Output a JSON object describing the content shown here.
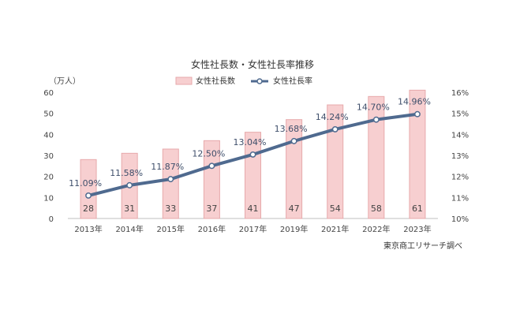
{
  "chart_data": {
    "type": "bar",
    "title": "女性社長数・女性社長率推移",
    "categories": [
      "2013年",
      "2014年",
      "2015年",
      "2016年",
      "2017年",
      "2019年",
      "2021年",
      "2022年",
      "2023年"
    ],
    "series": [
      {
        "name": "女性社長数",
        "type": "bar",
        "axis": "left",
        "values": [
          28,
          31,
          33,
          37,
          41,
          47,
          54,
          58,
          61
        ],
        "labels": [
          "28",
          "31",
          "33",
          "37",
          "41",
          "47",
          "54",
          "58",
          "61"
        ]
      },
      {
        "name": "女性社長率",
        "type": "line",
        "axis": "right",
        "values": [
          11.09,
          11.58,
          11.87,
          12.5,
          13.04,
          13.68,
          14.24,
          14.7,
          14.96
        ],
        "labels": [
          "11.09%",
          "11.58%",
          "11.87%",
          "12.50%",
          "13.04%",
          "13.68%",
          "14.24%",
          "14.70%",
          "14.96%"
        ]
      }
    ],
    "ylabel": "（万人）",
    "ylim": [
      0,
      60
    ],
    "yticks": [
      "0",
      "10",
      "20",
      "30",
      "40",
      "50",
      "60"
    ],
    "y2lim": [
      10,
      16
    ],
    "y2ticks": [
      "10%",
      "11%",
      "12%",
      "13%",
      "14%",
      "15%",
      "16%"
    ],
    "legend_position": "top-center",
    "grid": false,
    "source": "東京商工リサーチ調べ",
    "colors": {
      "bar_fill": "#f7cfd0",
      "bar_edge": "#e7a9ab",
      "line": "#4f6a8f",
      "axis": "#bfbfbf"
    }
  }
}
